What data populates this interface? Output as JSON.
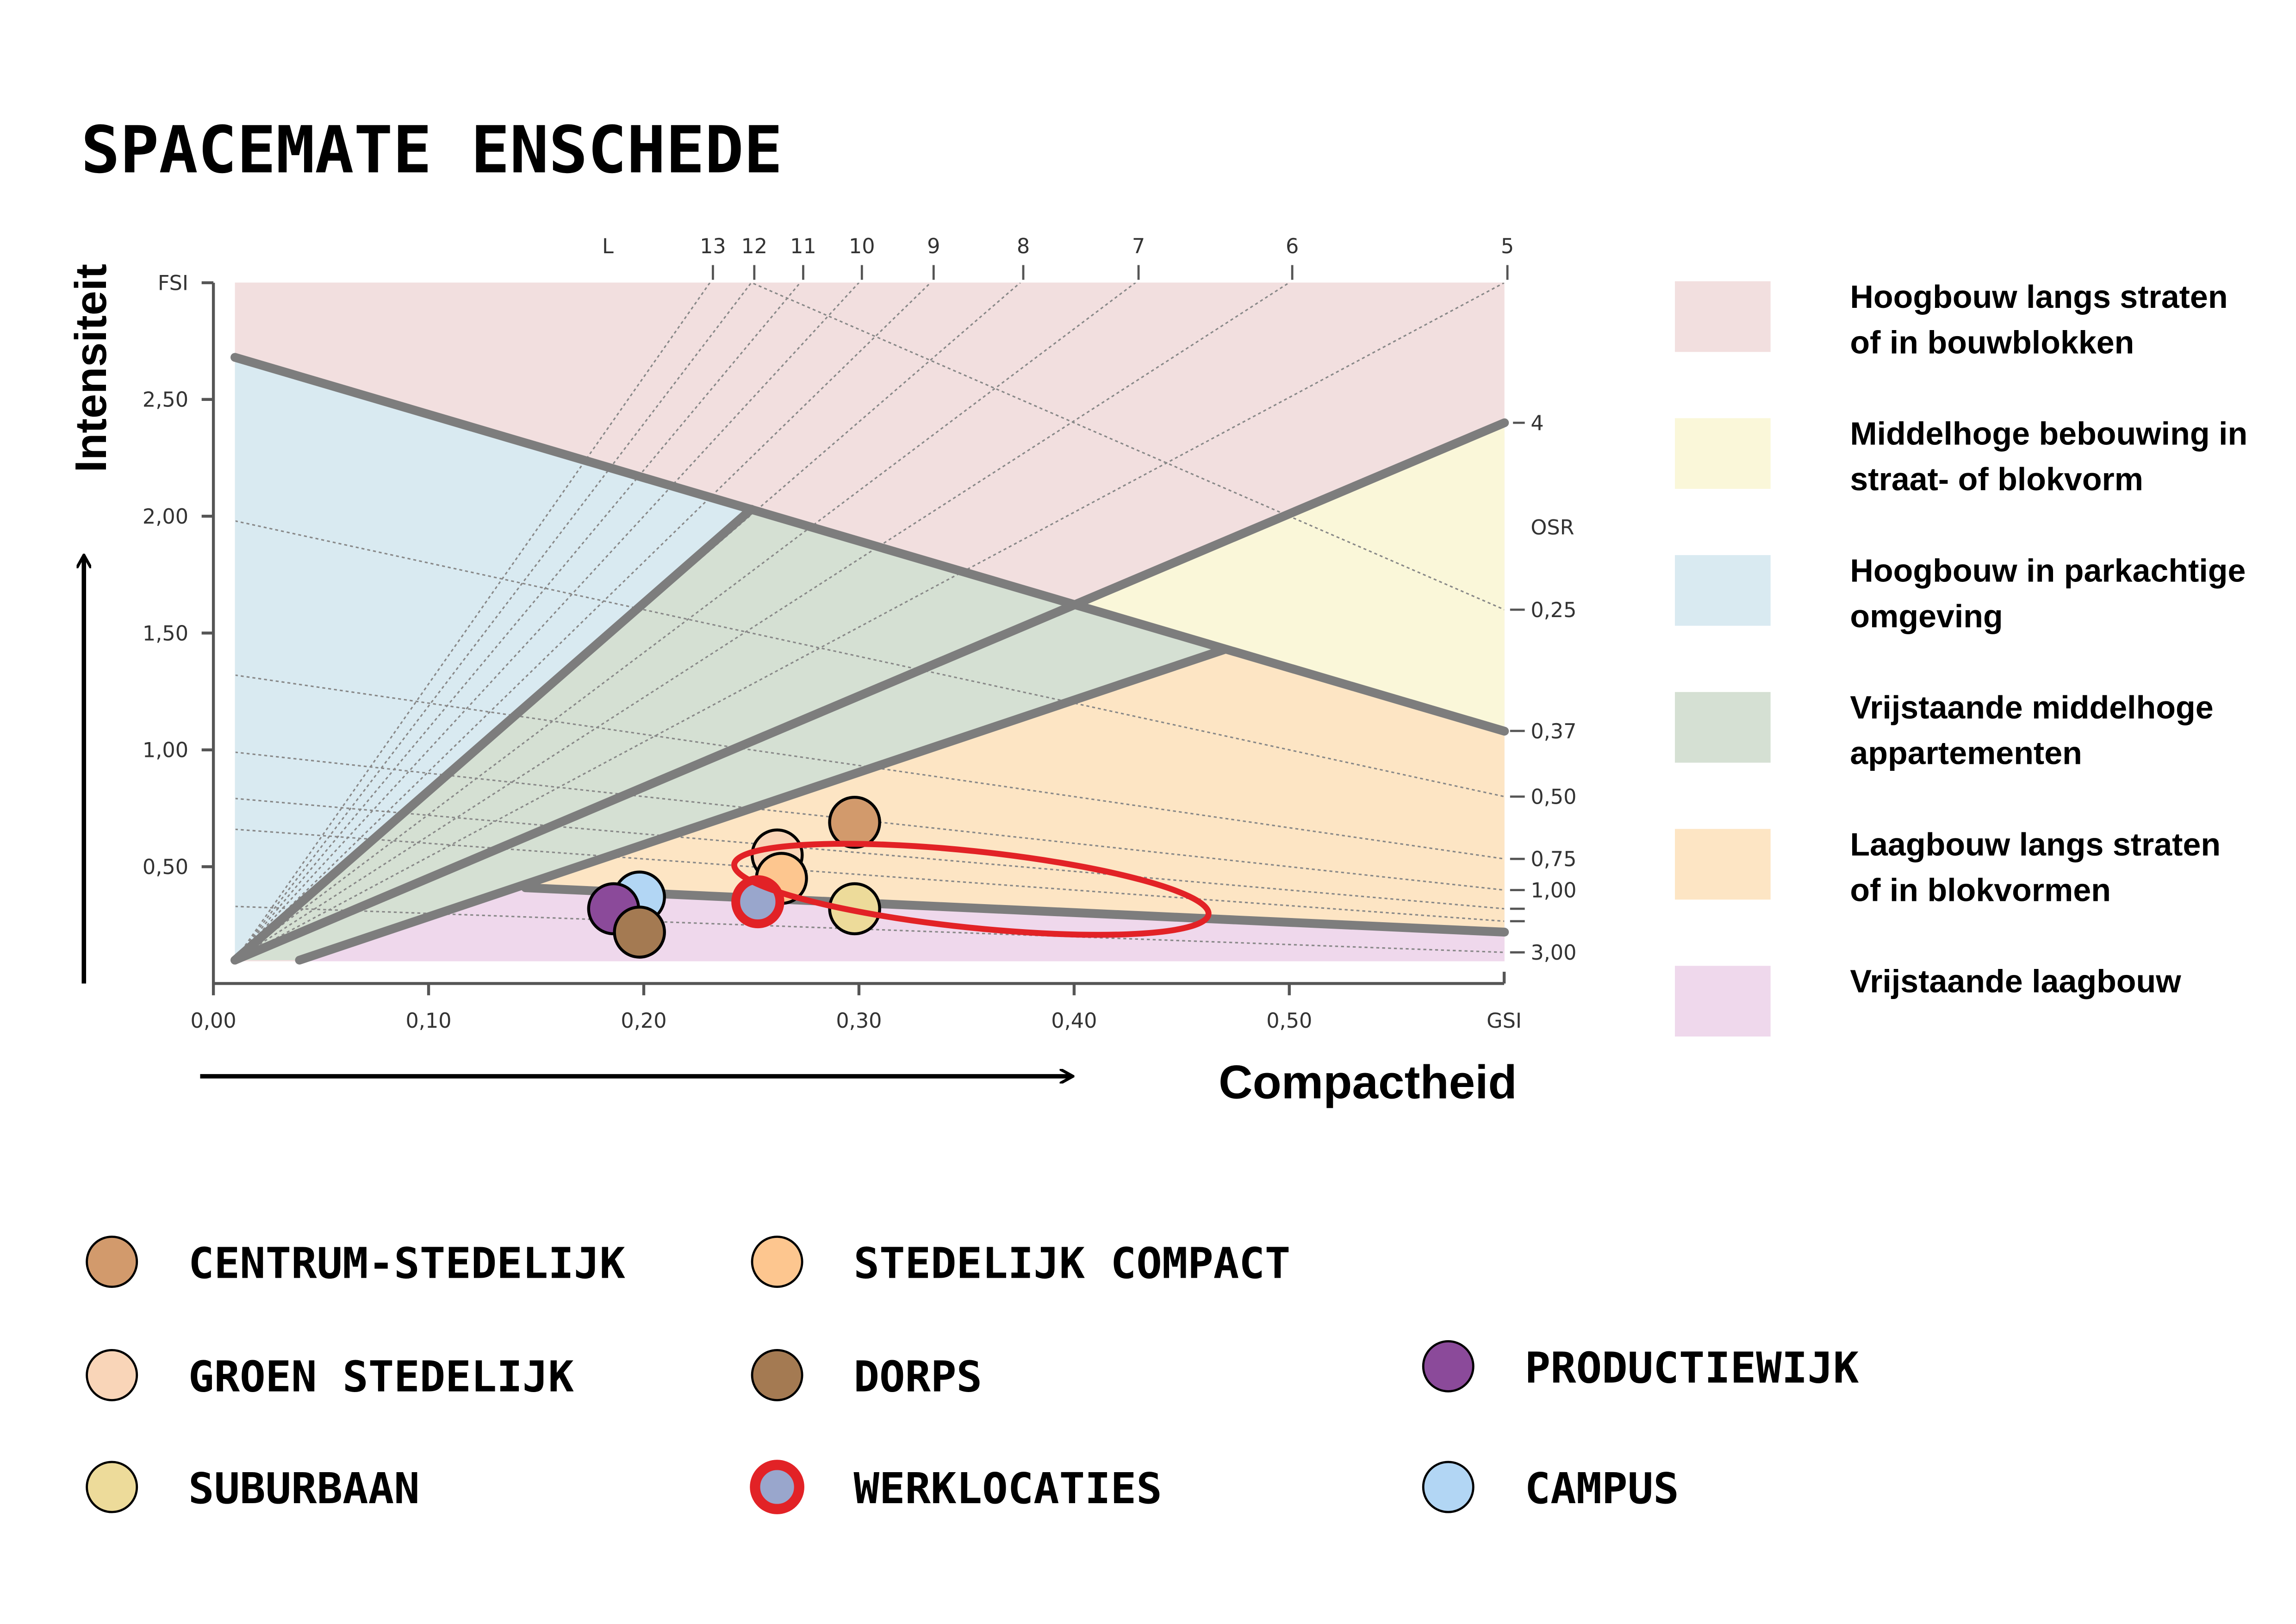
{
  "title": "SPACEMATE ENSCHEDE",
  "chart_data": {
    "type": "scatter",
    "title": "SPACEMATE ENSCHEDE",
    "xlabel": "Compactheid",
    "ylabel": "Intensiteit",
    "x_axis_name": "GSI",
    "y_axis_name": "FSI",
    "xlim": [
      0,
      0.6
    ],
    "ylim": [
      0,
      3.0
    ],
    "xticks": [
      {
        "v": 0.0,
        "label": "0,00"
      },
      {
        "v": 0.1,
        "label": "0,10"
      },
      {
        "v": 0.2,
        "label": "0,20"
      },
      {
        "v": 0.3,
        "label": "0,30"
      },
      {
        "v": 0.4,
        "label": "0,40"
      },
      {
        "v": 0.5,
        "label": "0,50"
      }
    ],
    "yticks": [
      {
        "v": 0.5,
        "label": "0,50"
      },
      {
        "v": 1.0,
        "label": "1,00"
      },
      {
        "v": 1.5,
        "label": "1,50"
      },
      {
        "v": 2.0,
        "label": "2,00"
      },
      {
        "v": 2.5,
        "label": "2,50"
      }
    ],
    "l_axis_name": "L",
    "l_ticks": [
      {
        "v": 13,
        "label": "13"
      },
      {
        "v": 12,
        "label": "12"
      },
      {
        "v": 11,
        "label": "11"
      },
      {
        "v": 10,
        "label": "10"
      },
      {
        "v": 9,
        "label": "9"
      },
      {
        "v": 8,
        "label": "8"
      },
      {
        "v": 7,
        "label": "7"
      },
      {
        "v": 6,
        "label": "6"
      },
      {
        "v": 5,
        "label": "5"
      }
    ],
    "l_right_tick": {
      "v": 4,
      "label": "4"
    },
    "osr_axis_name": "OSR",
    "osr_ticks": [
      {
        "v": 0.25,
        "label": "0,25"
      },
      {
        "v": 0.37,
        "label": "0,37"
      },
      {
        "v": 0.5,
        "label": "0,50"
      },
      {
        "v": 0.75,
        "label": "0,75"
      },
      {
        "v": 1.0,
        "label": "1,00"
      },
      {
        "v": 1.25,
        "label": ""
      },
      {
        "v": 1.5,
        "label": ""
      },
      {
        "v": 3.0,
        "label": "3,00"
      }
    ],
    "grid": "dotted L and OSR lines",
    "series": [
      {
        "name": "CENTRUM-STEDELIJK",
        "color": "#d29a6c",
        "x": 0.298,
        "y": 0.69
      },
      {
        "name": "GROEN STEDELIJK",
        "color": "#f9d5b8",
        "x": 0.262,
        "y": 0.55
      },
      {
        "name": "STEDELIJK COMPACT",
        "color": "#fdc68f",
        "x": 0.264,
        "y": 0.45
      },
      {
        "name": "SUBURBAAN",
        "color": "#eddb9a",
        "x": 0.298,
        "y": 0.32
      },
      {
        "name": "PRODUCTIEWIJK",
        "color": "#8b4a9a",
        "x": 0.186,
        "y": 0.32
      },
      {
        "name": "CAMPUS",
        "color": "#b2d6f4",
        "x": 0.198,
        "y": 0.37
      },
      {
        "name": "DORPS",
        "color": "#a47a52",
        "x": 0.198,
        "y": 0.22
      },
      {
        "name": "WERKLOCATIES",
        "color": "#99a6cc",
        "ring": "#e22226",
        "x": 0.253,
        "y": 0.35
      }
    ],
    "highlight_color": "#e22226",
    "regions": [
      {
        "line1": "Hoogbouw langs straten",
        "line2": "of in bouwblokken",
        "color": "#f2dfdf"
      },
      {
        "line1": "Middelhoge bebouwing in",
        "line2": "straat- of blokvorm",
        "color": "#faf7d9"
      },
      {
        "line1": "Hoogbouw in parkachtige",
        "line2": "omgeving",
        "color": "#d9eaf1"
      },
      {
        "line1": "Vrijstaande middelhoge",
        "line2": "appartementen",
        "color": "#d5e0d3"
      },
      {
        "line1": "Laagbouw langs straten",
        "line2": "of in blokvormen",
        "color": "#fde5c4"
      },
      {
        "line1": "Vrijstaande laagbouw",
        "line2": "",
        "color": "#efd8ec"
      }
    ]
  },
  "legend": [
    {
      "label": "CENTRUM-STEDELIJK",
      "color": "#d29a6c"
    },
    {
      "label": "GROEN STEDELIJK",
      "color": "#f9d5b8"
    },
    {
      "label": "SUBURBAAN",
      "color": "#eddb9a"
    },
    {
      "label": "STEDELIJK COMPACT",
      "color": "#fdc68f"
    },
    {
      "label": "DORPS",
      "color": "#a47a52"
    },
    {
      "label": "WERKLOCATIES",
      "color": "#99a6cc",
      "ring": "#e22226"
    },
    {
      "label": "PRODUCTIEWIJK",
      "color": "#8b4a9a"
    },
    {
      "label": "CAMPUS",
      "color": "#b2d6f4"
    }
  ]
}
